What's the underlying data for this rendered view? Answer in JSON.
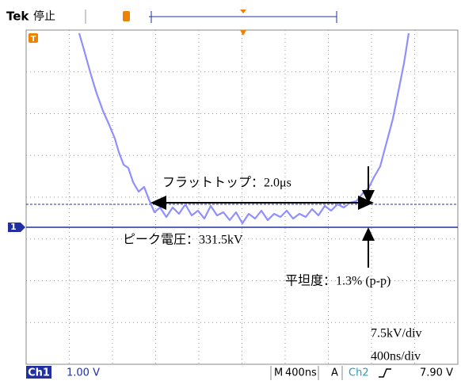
{
  "header": {
    "brand": "Tek",
    "status": "停止"
  },
  "markers": {
    "channel": "1",
    "trigger": "T"
  },
  "annotations": {
    "flat_top": "フラットトップ：2.0μs",
    "peak": "ピーク電圧：331.5kV",
    "flatness": "平坦度：1.3% (p-p)",
    "volt_div": "7.5kV/div",
    "time_div": "400ns/div"
  },
  "footer": {
    "channel": "Ch1",
    "ch_scale": "1.00 V",
    "time_label": "M",
    "time_scale": "400ns",
    "trigger_label": "A",
    "trigger_source": "Ch2",
    "trigger_level": "7.90 V"
  }
}
